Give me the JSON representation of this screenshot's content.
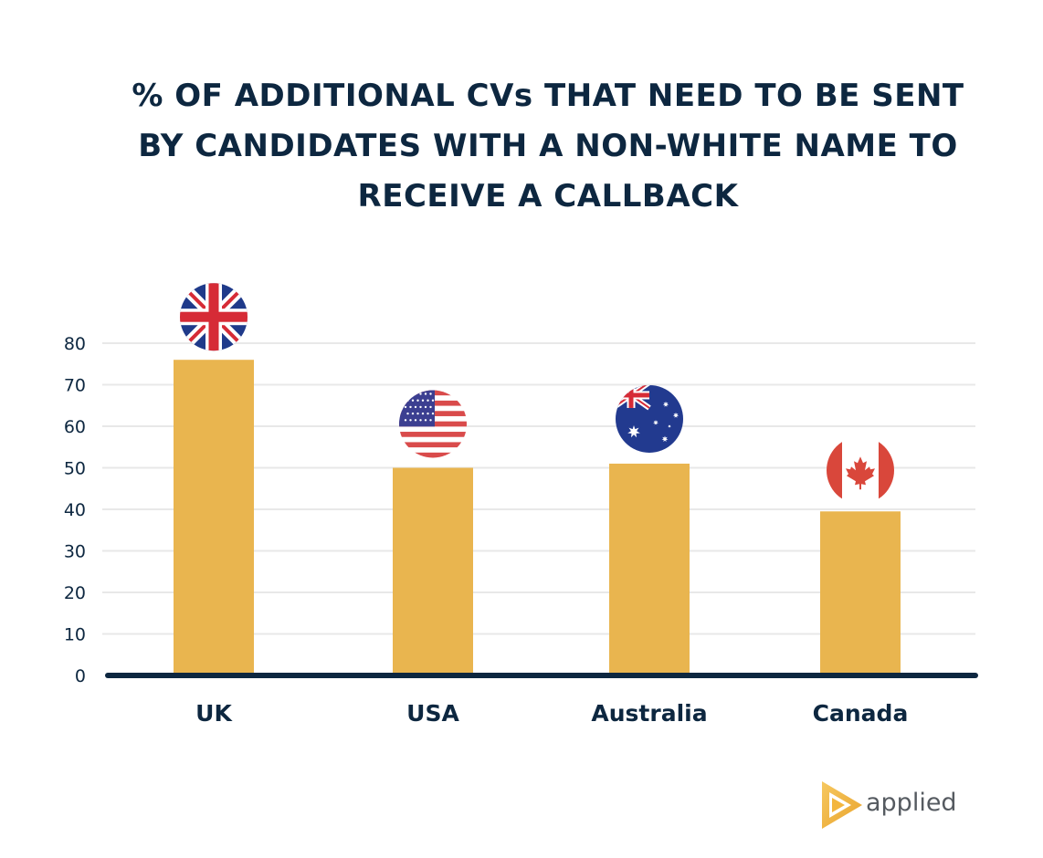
{
  "title_lines": [
    "% OF ADDITIONAL CVs THAT NEED TO BE SENT",
    "BY CANDIDATES WITH A NON-WHITE NAME TO",
    "RECEIVE A CALLBACK"
  ],
  "chart_data": {
    "type": "bar",
    "title": "% OF ADDITIONAL CVs THAT NEED TO BE SENT BY CANDIDATES WITH A NON-WHITE NAME TO RECEIVE A CALLBACK",
    "categories": [
      "UK",
      "USA",
      "Australia",
      "Canada"
    ],
    "values": [
      76,
      50,
      51,
      39.5
    ],
    "category_icons": [
      "uk-flag-icon",
      "usa-flag-icon",
      "australia-flag-icon",
      "canada-flag-icon"
    ],
    "y_ticks": [
      0,
      10,
      20,
      30,
      40,
      50,
      60,
      70,
      80
    ],
    "ylim": [
      0,
      80
    ],
    "xlabel": "",
    "ylabel": "",
    "grid": true,
    "legend": "none",
    "colors": {
      "bar": "#e9b54f",
      "axis": "#0d2740",
      "grid": "#e8e8e8",
      "tick_text": "#0d2740",
      "category_text": "#0d2740"
    }
  },
  "branding": {
    "logo_text": "applied",
    "logo_icon": "play-triangle-icon",
    "logo_color": "#f3b63f"
  }
}
